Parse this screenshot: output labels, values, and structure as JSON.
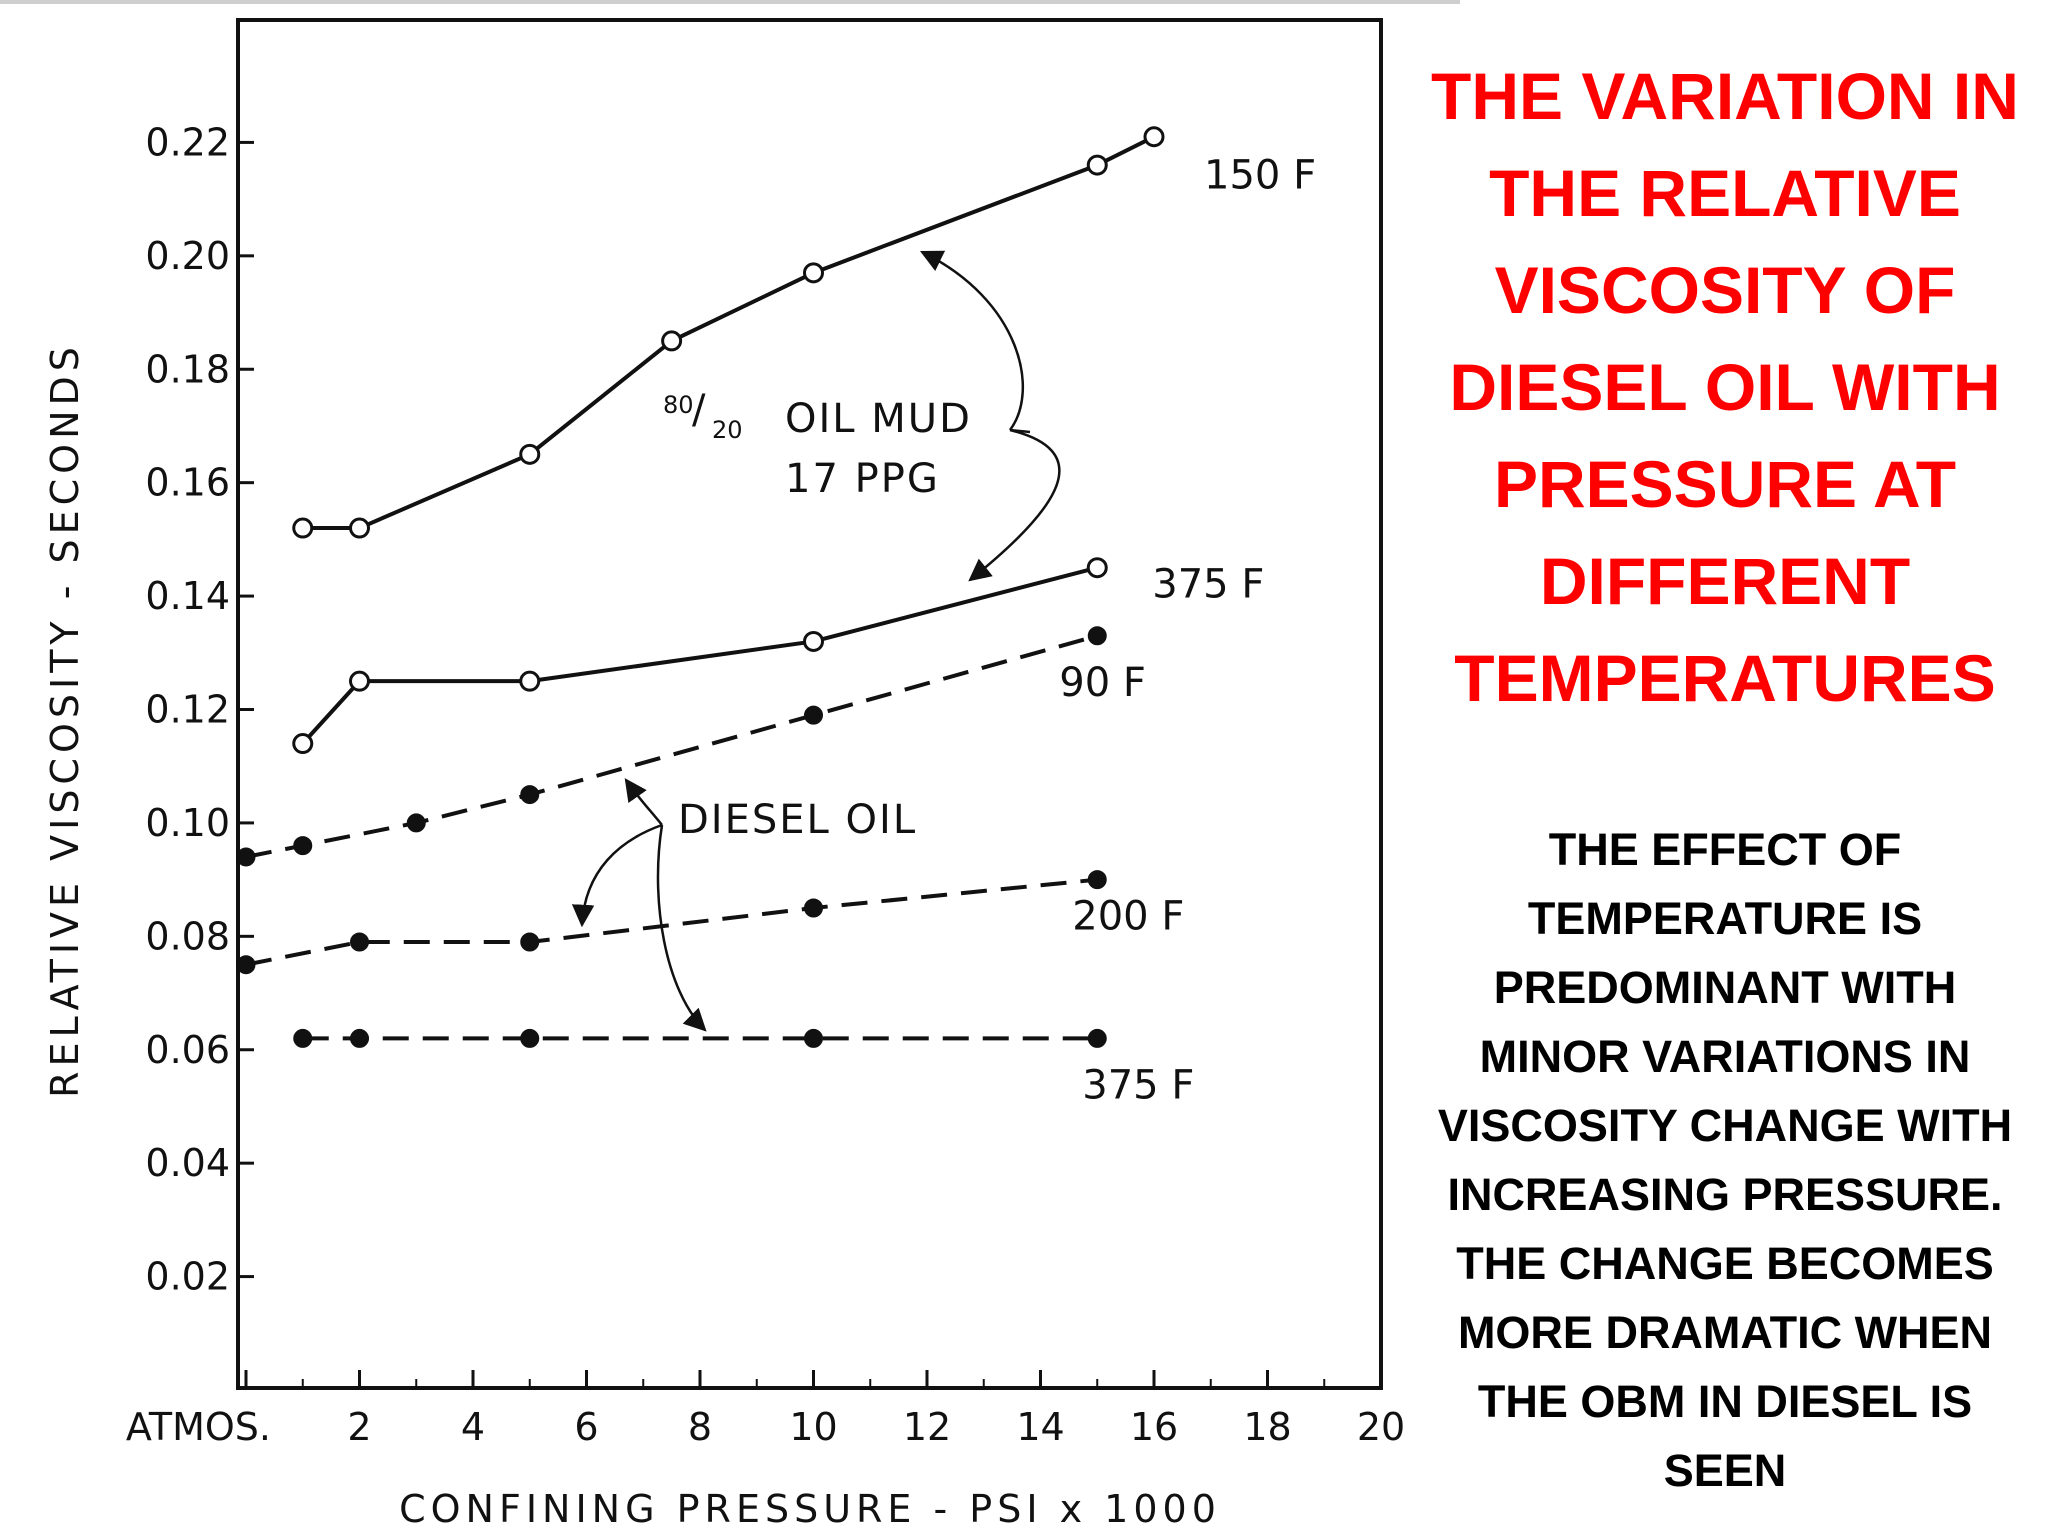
{
  "slide": {
    "title": "THE VARIATION IN\nTHE RELATIVE\nVISCOSITY OF\nDIESEL OIL WITH\nPRESSURE AT\nDIFFERENT\nTEMPERATURES",
    "body": "THE EFFECT OF\nTEMPERATURE IS\nPREDOMINANT WITH\nMINOR VARIATIONS IN\nVISCOSITY CHANGE WITH\nINCREASING PRESSURE.\nTHE CHANGE BECOMES\nMORE DRAMATIC WHEN\nTHE OBM IN DIESEL IS\nSEEN",
    "title_color": "#ff0000",
    "body_color": "#000000"
  },
  "chart_data": {
    "type": "line",
    "xlabel": "CONFINING PRESSURE - PSI x 1000",
    "ylabel": "RELATIVE VISCOSITY - SECONDS",
    "xlim": [
      0,
      20
    ],
    "ylim": [
      0,
      0.24
    ],
    "x_ticks": [
      {
        "value": 0,
        "label": "ATMOS."
      },
      {
        "value": 2,
        "label": "2"
      },
      {
        "value": 4,
        "label": "4"
      },
      {
        "value": 6,
        "label": "6"
      },
      {
        "value": 8,
        "label": "8"
      },
      {
        "value": 10,
        "label": "10"
      },
      {
        "value": 12,
        "label": "12"
      },
      {
        "value": 14,
        "label": "14"
      },
      {
        "value": 16,
        "label": "16"
      },
      {
        "value": 18,
        "label": "18"
      },
      {
        "value": 20,
        "label": "20"
      }
    ],
    "y_ticks": [
      {
        "value": 0.02,
        "label": "0.02"
      },
      {
        "value": 0.04,
        "label": "0.04"
      },
      {
        "value": 0.06,
        "label": "0.06"
      },
      {
        "value": 0.08,
        "label": "0.08"
      },
      {
        "value": 0.1,
        "label": "0.10"
      },
      {
        "value": 0.12,
        "label": "0.12"
      },
      {
        "value": 0.14,
        "label": "0.14"
      },
      {
        "value": 0.16,
        "label": "0.16"
      },
      {
        "value": 0.18,
        "label": "0.18"
      },
      {
        "value": 0.2,
        "label": "0.20"
      },
      {
        "value": 0.22,
        "label": "0.22"
      }
    ],
    "grid": false,
    "series": [
      {
        "name": "150 F",
        "group": "oil-mud",
        "style": "solid",
        "marker": "open",
        "x": [
          1,
          2,
          5,
          7.5,
          10,
          15,
          16
        ],
        "y": [
          0.152,
          0.152,
          0.165,
          0.185,
          0.197,
          0.216,
          0.221
        ]
      },
      {
        "name": "375 F",
        "group": "oil-mud",
        "style": "solid",
        "marker": "open",
        "x": [
          1,
          2,
          5,
          10,
          15
        ],
        "y": [
          0.114,
          0.125,
          0.125,
          0.132,
          0.145
        ]
      },
      {
        "name": "90 F",
        "group": "diesel",
        "style": "dashed",
        "marker": "filled",
        "x": [
          0,
          1,
          3,
          5,
          10,
          15
        ],
        "y": [
          0.094,
          0.096,
          0.1,
          0.105,
          0.119,
          0.133
        ]
      },
      {
        "name": "200 F",
        "group": "diesel",
        "style": "dashed",
        "marker": "filled",
        "x": [
          0,
          2,
          5,
          10,
          15
        ],
        "y": [
          0.075,
          0.079,
          0.079,
          0.085,
          0.09
        ]
      },
      {
        "name": "375 F",
        "group": "diesel",
        "style": "dashed",
        "marker": "filled",
        "x": [
          1,
          2,
          5,
          10,
          15
        ],
        "y": [
          0.062,
          0.062,
          0.062,
          0.062,
          0.062
        ]
      }
    ],
    "annotations": {
      "oil_mud_ratio_top": "80",
      "oil_mud_ratio_bottom": "20",
      "oil_mud_line1": "OIL MUD",
      "oil_mud_line2": "17 PPG",
      "diesel": "DIESEL OIL"
    }
  }
}
